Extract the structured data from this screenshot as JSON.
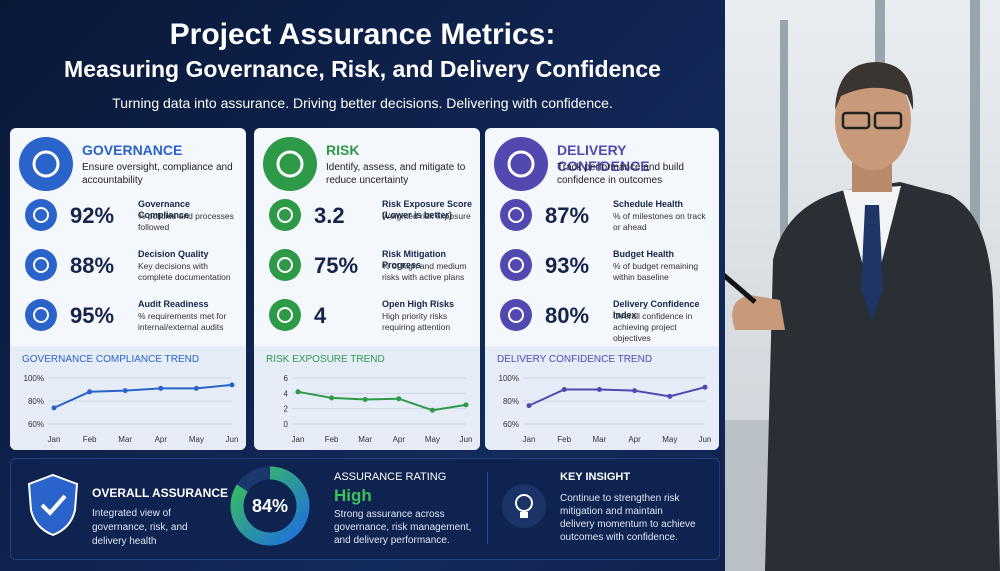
{
  "header": {
    "title_line1": "Project Assurance Metrics:",
    "title_line2": "Measuring Governance, Risk, and Delivery Confidence",
    "subtitle": "Turning data into assurance. Driving better decisions. Delivering with confidence."
  },
  "panels": [
    {
      "title": "GOVERNANCE",
      "description": "Ensure oversight, compliance and accountability",
      "color": "#2a63c9",
      "metrics": [
        {
          "value": "92%",
          "name": "Governance Compliance",
          "description": "% policies and processes followed"
        },
        {
          "value": "88%",
          "name": "Decision Quality",
          "description": "Key decisions with complete documentation"
        },
        {
          "value": "95%",
          "name": "Audit Readiness",
          "description": "% requirements met for internal/external audits"
        }
      ],
      "trend": {
        "title": "GOVERNANCE COMPLIANCE TREND",
        "categories": [
          "Jan",
          "Feb",
          "Mar",
          "Apr",
          "May",
          "Jun"
        ],
        "values": [
          74,
          88,
          89,
          91,
          91,
          94
        ],
        "ylim": [
          60,
          100
        ],
        "yticks": [
          {
            "value": 100,
            "label": "100%"
          },
          {
            "value": 80,
            "label": "80%"
          },
          {
            "value": 60,
            "label": "60%"
          }
        ]
      }
    },
    {
      "title": "RISK",
      "description": "Identify, assess, and mitigate to reduce uncertainty",
      "color": "#2e9a48",
      "metrics": [
        {
          "value": "3.2",
          "name": "Risk Exposure Score (Lower is better)",
          "description": "Weighted risk exposure"
        },
        {
          "value": "75%",
          "name": "Risk Mitigation Progress",
          "description": "% of high and medium risks with active plans"
        },
        {
          "value": "4",
          "name": "Open High Risks",
          "description": "High priority risks requiring attention"
        }
      ],
      "trend": {
        "title": "RISK EXPOSURE TREND",
        "categories": [
          "Jan",
          "Feb",
          "Mar",
          "Apr",
          "May",
          "Jun"
        ],
        "values": [
          4.2,
          3.4,
          3.2,
          3.3,
          1.8,
          2.5
        ],
        "ylim": [
          0,
          6
        ],
        "yticks": [
          6,
          4,
          2,
          0
        ]
      }
    },
    {
      "title": "DELIVERY CONFIDENCE",
      "description": "Track performance and build confidence in outcomes",
      "color": "#5149b0",
      "metrics": [
        {
          "value": "87%",
          "name": "Schedule Health",
          "description": "% of milestones on track or ahead"
        },
        {
          "value": "93%",
          "name": "Budget Health",
          "description": "% of budget remaining within baseline"
        },
        {
          "value": "80%",
          "name": "Delivery Confidence Index",
          "description": "Overall confidence in achieving project objectives"
        }
      ],
      "trend": {
        "title": "DELIVERY CONFIDENCE TREND",
        "categories": [
          "Jan",
          "Feb",
          "Mar",
          "Apr",
          "May",
          "Jun"
        ],
        "values": [
          76,
          90,
          90,
          89,
          84,
          92
        ],
        "ylim": [
          60,
          100
        ],
        "yticks": [
          {
            "value": 100,
            "label": "100%"
          },
          {
            "value": 80,
            "label": "80%"
          },
          {
            "value": 60,
            "label": "60%"
          }
        ]
      }
    }
  ],
  "bottom": {
    "overall_title": "OVERALL ASSURANCE",
    "overall_description": "Integrated view of governance, risk, and delivery health",
    "gauge": {
      "value": 84,
      "value_label": "84%"
    },
    "rating_label": "ASSURANCE RATING",
    "rating": "High",
    "rating_description": "Strong assurance across governance, risk management, and delivery performance.",
    "insight_title": "KEY INSIGHT",
    "insight_text": "Continue to strengthen risk mitigation and maintain delivery momentum to achieve outcomes with confidence."
  }
}
